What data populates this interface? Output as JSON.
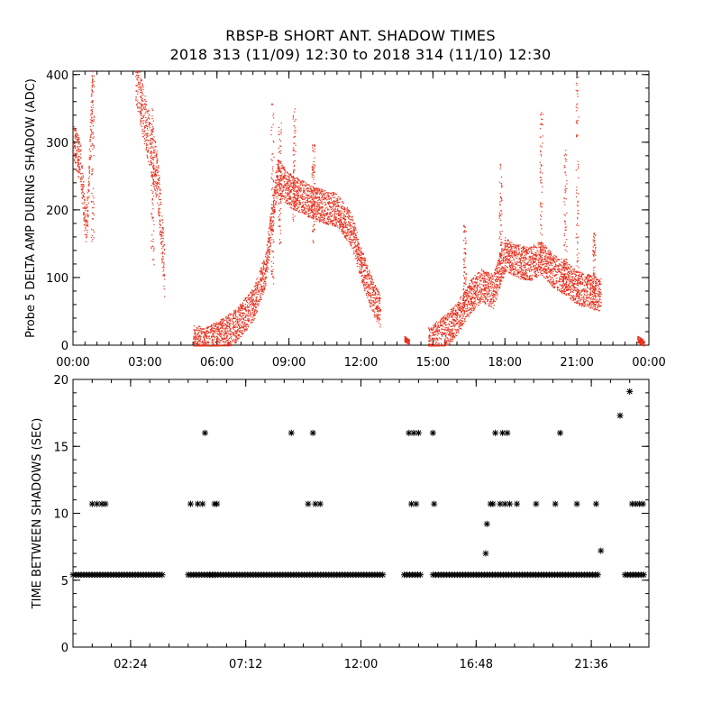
{
  "title_line1": "RBSP-B SHORT ANT. SHADOW TIMES",
  "title_line2": "2018 313 (11/09) 12:30 to 2018 314 (11/10) 12:30",
  "colors": {
    "amp_points": "#e8301c",
    "interval_points": "#000000",
    "axes": "#000000"
  },
  "chart_data": [
    {
      "type": "scatter",
      "ylabel": "Probe 5 DELTA AMP DURING SHADOW (ADC)",
      "xlim": [
        0,
        24
      ],
      "ylim": [
        0,
        405
      ],
      "xticks": [
        0,
        3,
        6,
        9,
        12,
        15,
        18,
        21,
        24
      ],
      "xtick_labels": [
        "00:00",
        "03:00",
        "06:00",
        "09:00",
        "12:00",
        "15:00",
        "18:00",
        "21:00",
        "00:00"
      ],
      "yticks": [
        0,
        100,
        200,
        300,
        400
      ],
      "ytick_labels": [
        "0",
        "100",
        "200",
        "300",
        "400"
      ],
      "marker": "dot",
      "segments": [
        {
          "t": [
            0.0,
            0.3,
            0.5,
            0.6,
            0.8
          ],
          "y": [
            300,
            270,
            180,
            200,
            390
          ],
          "spread": 30
        },
        {
          "t": [
            2.6,
            3.0,
            3.5,
            3.8
          ],
          "y": [
            400,
            330,
            250,
            110
          ],
          "spread": 40
        },
        {
          "t": [
            5.0,
            5.5,
            6.0,
            6.8,
            7.5,
            8.0,
            8.5,
            9.0,
            10.0,
            11.0,
            11.6,
            12.0,
            12.5,
            12.8
          ],
          "y": [
            5,
            2,
            10,
            30,
            60,
            110,
            250,
            230,
            210,
            200,
            170,
            120,
            70,
            50
          ],
          "spread": 25
        },
        {
          "t": [
            13.8,
            14.0
          ],
          "y": [
            10,
            5
          ],
          "spread": 4
        },
        {
          "t": [
            14.8,
            15.5,
            16.0,
            16.5,
            17.0,
            17.5,
            18.0,
            18.5,
            19.0,
            19.5,
            20.0,
            20.5,
            21.0,
            21.5,
            22.0
          ],
          "y": [
            2,
            20,
            40,
            70,
            90,
            80,
            135,
            125,
            120,
            130,
            110,
            100,
            85,
            80,
            75
          ],
          "spread": 25
        },
        {
          "t": [
            23.5,
            23.8
          ],
          "y": [
            10,
            3
          ],
          "spread": 5
        }
      ],
      "spikes": [
        {
          "t": 0.8,
          "ymin": 150,
          "ymax": 400
        },
        {
          "t": 3.3,
          "ymin": 110,
          "ymax": 350
        },
        {
          "t": 8.3,
          "ymin": 90,
          "ymax": 360
        },
        {
          "t": 8.6,
          "ymin": 150,
          "ymax": 330
        },
        {
          "t": 9.2,
          "ymin": 180,
          "ymax": 350
        },
        {
          "t": 10.0,
          "ymin": 150,
          "ymax": 300
        },
        {
          "t": 16.3,
          "ymin": 60,
          "ymax": 180
        },
        {
          "t": 17.8,
          "ymin": 100,
          "ymax": 270
        },
        {
          "t": 19.5,
          "ymin": 110,
          "ymax": 350
        },
        {
          "t": 20.5,
          "ymin": 80,
          "ymax": 300
        },
        {
          "t": 21.0,
          "ymin": 70,
          "ymax": 400
        },
        {
          "t": 21.7,
          "ymin": 70,
          "ymax": 170
        }
      ]
    },
    {
      "type": "scatter",
      "ylabel": "TIME BETWEEN SHADOWS (SEC)",
      "xlim": [
        0,
        24
      ],
      "ylim": [
        0,
        20
      ],
      "xticks": [
        2.4,
        7.2,
        12.0,
        16.8,
        21.6
      ],
      "xtick_labels": [
        "02:24",
        "07:12",
        "12:00",
        "16:48",
        "21:36"
      ],
      "yticks": [
        0,
        5,
        10,
        15,
        20
      ],
      "ytick_labels": [
        "0",
        "5",
        "10",
        "15",
        "20"
      ],
      "marker": "asterisk",
      "baseline": {
        "y": 5.4,
        "ranges": [
          [
            0.0,
            3.8
          ],
          [
            4.8,
            6.0
          ],
          [
            5.7,
            13.0
          ],
          [
            13.8,
            14.5
          ],
          [
            15.0,
            21.9
          ],
          [
            23.0,
            23.8
          ]
        ]
      },
      "points": [
        {
          "t": 0.8,
          "y": 10.7
        },
        {
          "t": 1.0,
          "y": 10.7
        },
        {
          "t": 1.2,
          "y": 10.7
        },
        {
          "t": 1.35,
          "y": 10.7
        },
        {
          "t": 4.9,
          "y": 10.7
        },
        {
          "t": 5.2,
          "y": 10.7
        },
        {
          "t": 5.4,
          "y": 10.7
        },
        {
          "t": 5.5,
          "y": 16.0
        },
        {
          "t": 5.9,
          "y": 10.7
        },
        {
          "t": 6.0,
          "y": 10.7
        },
        {
          "t": 9.1,
          "y": 16.0
        },
        {
          "t": 9.8,
          "y": 10.7
        },
        {
          "t": 10.0,
          "y": 16.0
        },
        {
          "t": 10.1,
          "y": 10.7
        },
        {
          "t": 10.3,
          "y": 10.7
        },
        {
          "t": 14.0,
          "y": 16.0
        },
        {
          "t": 14.1,
          "y": 10.7
        },
        {
          "t": 14.2,
          "y": 16.0
        },
        {
          "t": 14.3,
          "y": 10.7
        },
        {
          "t": 14.4,
          "y": 16.0
        },
        {
          "t": 15.0,
          "y": 16.0
        },
        {
          "t": 15.05,
          "y": 10.7
        },
        {
          "t": 17.2,
          "y": 7.0
        },
        {
          "t": 17.25,
          "y": 9.2
        },
        {
          "t": 17.4,
          "y": 10.7
        },
        {
          "t": 17.5,
          "y": 10.7
        },
        {
          "t": 17.6,
          "y": 16.0
        },
        {
          "t": 17.8,
          "y": 10.7
        },
        {
          "t": 17.9,
          "y": 16.0
        },
        {
          "t": 18.0,
          "y": 10.7
        },
        {
          "t": 18.1,
          "y": 16.0
        },
        {
          "t": 18.2,
          "y": 10.7
        },
        {
          "t": 18.5,
          "y": 10.7
        },
        {
          "t": 19.3,
          "y": 10.7
        },
        {
          "t": 20.1,
          "y": 10.7
        },
        {
          "t": 20.3,
          "y": 16.0
        },
        {
          "t": 21.0,
          "y": 10.7
        },
        {
          "t": 21.8,
          "y": 10.7
        },
        {
          "t": 22.0,
          "y": 7.2
        },
        {
          "t": 22.8,
          "y": 17.3
        },
        {
          "t": 23.2,
          "y": 19.1
        },
        {
          "t": 23.3,
          "y": 10.7
        },
        {
          "t": 23.45,
          "y": 10.7
        },
        {
          "t": 23.6,
          "y": 10.7
        },
        {
          "t": 23.75,
          "y": 10.7
        }
      ]
    }
  ]
}
